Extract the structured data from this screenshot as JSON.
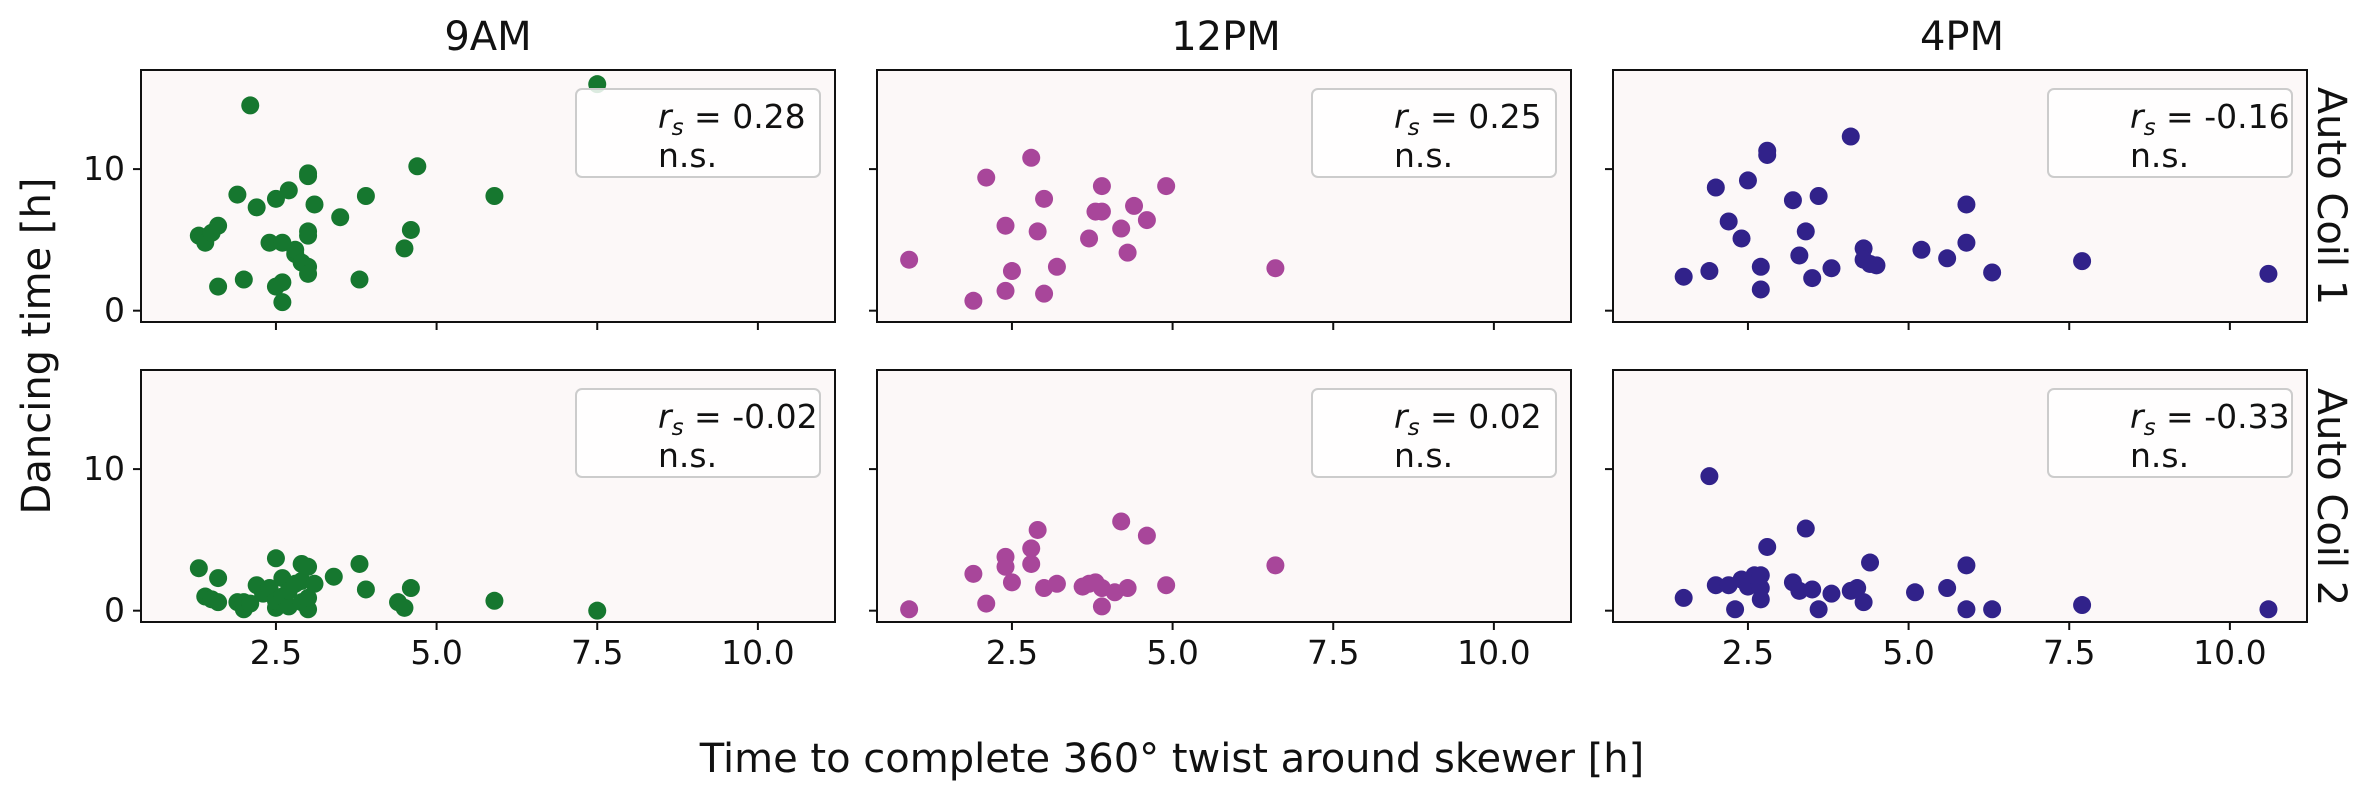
{
  "figure": {
    "xlabel": "Time to complete 360° twist around skewer [h]",
    "ylabel": "Dancing time [h]",
    "col_titles": [
      "9AM",
      "12PM",
      "4PM"
    ],
    "row_titles": [
      "Auto Coil 1",
      "Auto Coil 2"
    ],
    "panel_bg": "#fcf8f8",
    "x_ticks": [
      "2.5",
      "5.0",
      "7.5",
      "10.0"
    ],
    "y_ticks": [
      "0",
      "10"
    ]
  },
  "chart_data": [
    {
      "type": "scatter",
      "row": "Auto Coil 1",
      "col": "9AM",
      "color": "#16772f",
      "xlim": [
        0.4,
        11.2
      ],
      "ylim": [
        -0.8,
        17
      ],
      "annotation": {
        "stat": "= 0.28",
        "sig": "n.s."
      },
      "points": [
        [
          1.3,
          5.3
        ],
        [
          1.4,
          4.8
        ],
        [
          1.5,
          5.5
        ],
        [
          1.6,
          6.0
        ],
        [
          1.6,
          1.7
        ],
        [
          1.9,
          8.2
        ],
        [
          2.0,
          2.2
        ],
        [
          2.1,
          14.5
        ],
        [
          2.2,
          7.3
        ],
        [
          2.4,
          4.8
        ],
        [
          2.5,
          7.9
        ],
        [
          2.5,
          1.7
        ],
        [
          2.6,
          4.8
        ],
        [
          2.6,
          2.0
        ],
        [
          2.6,
          0.6
        ],
        [
          2.7,
          8.5
        ],
        [
          2.8,
          4.0
        ],
        [
          2.8,
          4.3
        ],
        [
          2.9,
          3.4
        ],
        [
          3.0,
          9.5
        ],
        [
          3.0,
          9.7
        ],
        [
          3.0,
          5.6
        ],
        [
          3.0,
          5.3
        ],
        [
          3.1,
          7.5
        ],
        [
          3.0,
          3.1
        ],
        [
          3.0,
          2.6
        ],
        [
          3.5,
          6.6
        ],
        [
          3.8,
          2.2
        ],
        [
          3.9,
          8.1
        ],
        [
          4.5,
          4.4
        ],
        [
          4.6,
          5.7
        ],
        [
          4.7,
          10.2
        ],
        [
          5.9,
          8.1
        ],
        [
          7.5,
          16.0
        ]
      ]
    },
    {
      "type": "scatter",
      "row": "Auto Coil 1",
      "col": "12PM",
      "color": "#a8469a",
      "xlim": [
        0.4,
        11.2
      ],
      "ylim": [
        -0.8,
        17
      ],
      "annotation": {
        "stat": "= 0.25",
        "sig": "n.s."
      },
      "points": [
        [
          0.9,
          3.6
        ],
        [
          1.9,
          0.7
        ],
        [
          2.1,
          9.4
        ],
        [
          2.4,
          6.0
        ],
        [
          2.4,
          1.4
        ],
        [
          2.5,
          2.8
        ],
        [
          2.8,
          10.8
        ],
        [
          2.9,
          5.6
        ],
        [
          3.0,
          7.9
        ],
        [
          3.0,
          1.2
        ],
        [
          3.2,
          3.1
        ],
        [
          3.7,
          5.1
        ],
        [
          3.8,
          7.0
        ],
        [
          3.9,
          7.0
        ],
        [
          3.9,
          8.8
        ],
        [
          4.2,
          5.8
        ],
        [
          4.3,
          4.1
        ],
        [
          4.4,
          7.4
        ],
        [
          4.6,
          6.4
        ],
        [
          4.9,
          8.8
        ],
        [
          6.6,
          3.0
        ]
      ]
    },
    {
      "type": "scatter",
      "row": "Auto Coil 1",
      "col": "4PM",
      "color": "#31228a",
      "xlim": [
        0.4,
        11.2
      ],
      "ylim": [
        -0.8,
        17
      ],
      "annotation": {
        "stat": "= -0.16",
        "sig": "n.s."
      },
      "points": [
        [
          1.5,
          2.4
        ],
        [
          1.9,
          2.8
        ],
        [
          2.0,
          8.7
        ],
        [
          2.2,
          6.3
        ],
        [
          2.4,
          5.1
        ],
        [
          2.5,
          9.2
        ],
        [
          2.7,
          3.1
        ],
        [
          2.7,
          1.5
        ],
        [
          2.8,
          11.0
        ],
        [
          2.8,
          11.3
        ],
        [
          3.2,
          7.8
        ],
        [
          3.3,
          3.9
        ],
        [
          3.4,
          5.6
        ],
        [
          3.5,
          2.3
        ],
        [
          3.6,
          8.1
        ],
        [
          3.8,
          3.0
        ],
        [
          4.1,
          12.3
        ],
        [
          4.3,
          4.4
        ],
        [
          4.3,
          3.6
        ],
        [
          4.4,
          3.3
        ],
        [
          4.5,
          3.2
        ],
        [
          5.2,
          4.3
        ],
        [
          5.6,
          3.7
        ],
        [
          5.9,
          7.5
        ],
        [
          5.9,
          4.8
        ],
        [
          6.3,
          2.7
        ],
        [
          7.7,
          3.5
        ],
        [
          10.6,
          2.6
        ]
      ]
    },
    {
      "type": "scatter",
      "row": "Auto Coil 2",
      "col": "9AM",
      "color": "#16772f",
      "xlim": [
        0.4,
        11.2
      ],
      "ylim": [
        -0.8,
        17
      ],
      "annotation": {
        "stat": "= -0.02",
        "sig": "n.s."
      },
      "points": [
        [
          1.3,
          3.0
        ],
        [
          1.4,
          1.0
        ],
        [
          1.5,
          0.8
        ],
        [
          1.6,
          2.3
        ],
        [
          1.6,
          0.6
        ],
        [
          1.9,
          0.6
        ],
        [
          2.0,
          0.1
        ],
        [
          2.0,
          0.6
        ],
        [
          2.1,
          0.5
        ],
        [
          2.2,
          1.8
        ],
        [
          2.3,
          1.2
        ],
        [
          2.4,
          1.6
        ],
        [
          2.5,
          3.7
        ],
        [
          2.5,
          0.2
        ],
        [
          2.5,
          0.7
        ],
        [
          2.6,
          2.3
        ],
        [
          2.6,
          1.0
        ],
        [
          2.7,
          0.3
        ],
        [
          2.7,
          1.4
        ],
        [
          2.8,
          1.9
        ],
        [
          2.9,
          3.3
        ],
        [
          2.9,
          2.1
        ],
        [
          2.9,
          0.6
        ],
        [
          3.0,
          0.1
        ],
        [
          3.0,
          3.1
        ],
        [
          3.0,
          0.9
        ],
        [
          3.1,
          1.9
        ],
        [
          3.4,
          2.4
        ],
        [
          3.8,
          3.3
        ],
        [
          3.9,
          1.5
        ],
        [
          4.4,
          0.6
        ],
        [
          4.5,
          0.2
        ],
        [
          4.6,
          1.6
        ],
        [
          5.9,
          0.7
        ],
        [
          7.5,
          0.0
        ]
      ]
    },
    {
      "type": "scatter",
      "row": "Auto Coil 2",
      "col": "12PM",
      "color": "#a8469a",
      "xlim": [
        0.4,
        11.2
      ],
      "ylim": [
        -0.8,
        17
      ],
      "annotation": {
        "stat": "= 0.02",
        "sig": "n.s."
      },
      "points": [
        [
          0.9,
          0.1
        ],
        [
          1.9,
          2.6
        ],
        [
          2.1,
          0.5
        ],
        [
          2.4,
          3.8
        ],
        [
          2.4,
          3.1
        ],
        [
          2.5,
          2.0
        ],
        [
          2.8,
          4.4
        ],
        [
          2.8,
          3.3
        ],
        [
          2.9,
          5.7
        ],
        [
          3.0,
          1.6
        ],
        [
          3.2,
          1.9
        ],
        [
          3.6,
          1.7
        ],
        [
          3.7,
          1.9
        ],
        [
          3.8,
          2.0
        ],
        [
          3.9,
          0.3
        ],
        [
          3.9,
          1.6
        ],
        [
          4.1,
          1.3
        ],
        [
          4.2,
          6.3
        ],
        [
          4.3,
          1.6
        ],
        [
          4.6,
          5.3
        ],
        [
          4.9,
          1.8
        ],
        [
          6.6,
          3.2
        ]
      ]
    },
    {
      "type": "scatter",
      "row": "Auto Coil 2",
      "col": "4PM",
      "color": "#31228a",
      "xlim": [
        0.4,
        11.2
      ],
      "ylim": [
        -0.8,
        17
      ],
      "annotation": {
        "stat": "= -0.33",
        "sig": "n.s."
      },
      "points": [
        [
          1.5,
          0.9
        ],
        [
          1.9,
          9.5
        ],
        [
          2.0,
          1.8
        ],
        [
          2.2,
          1.8
        ],
        [
          2.3,
          0.1
        ],
        [
          2.4,
          2.2
        ],
        [
          2.5,
          1.7
        ],
        [
          2.6,
          2.5
        ],
        [
          2.7,
          0.8
        ],
        [
          2.7,
          1.6
        ],
        [
          2.7,
          2.5
        ],
        [
          2.8,
          4.5
        ],
        [
          3.2,
          2.0
        ],
        [
          3.3,
          1.4
        ],
        [
          3.4,
          5.8
        ],
        [
          3.5,
          1.5
        ],
        [
          3.6,
          0.1
        ],
        [
          3.8,
          1.2
        ],
        [
          4.1,
          1.4
        ],
        [
          4.2,
          1.6
        ],
        [
          4.3,
          0.6
        ],
        [
          4.4,
          3.4
        ],
        [
          5.1,
          1.3
        ],
        [
          5.6,
          1.6
        ],
        [
          5.9,
          0.1
        ],
        [
          5.9,
          3.2
        ],
        [
          6.3,
          0.1
        ],
        [
          7.7,
          0.4
        ],
        [
          10.6,
          0.1
        ]
      ]
    }
  ]
}
